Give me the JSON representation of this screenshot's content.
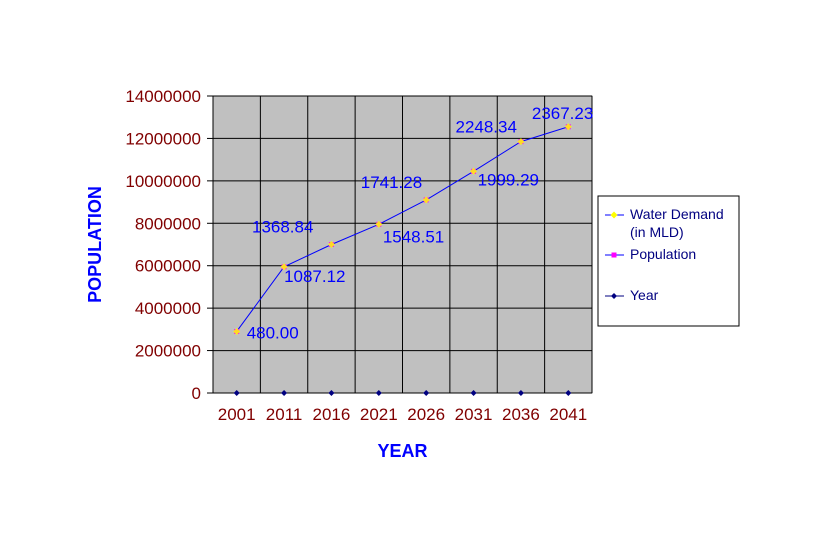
{
  "chart_data": {
    "type": "line",
    "title": "",
    "xlabel": "YEAR",
    "ylabel": "POPULATION",
    "categories": [
      "2001",
      "2011",
      "2016",
      "2021",
      "2026",
      "2031",
      "2036",
      "2041"
    ],
    "ylim": [
      0,
      14000000
    ],
    "yticks": [
      {
        "value": 0,
        "label": "0"
      },
      {
        "value": 2000000,
        "label": "2000000"
      },
      {
        "value": 4000000,
        "label": "4000000"
      },
      {
        "value": 6000000,
        "label": "6000000"
      },
      {
        "value": 8000000,
        "label": "8000000"
      },
      {
        "value": 10000000,
        "label": "10000000"
      },
      {
        "value": 12000000,
        "label": "12000000"
      },
      {
        "value": 14000000,
        "label": "14000000"
      }
    ],
    "grid": true,
    "legend_position": "right",
    "series": [
      {
        "name": "Water Demand (in MLD)",
        "legend_lines": [
          "Water Demand",
          "(in MLD)"
        ],
        "values": [
          480.0,
          1087.12,
          1368.84,
          1548.51,
          1741.28,
          1999.29,
          2248.34,
          2367.23
        ],
        "color": "#FFFF00"
      },
      {
        "name": "Population",
        "legend_lines": [
          "Population"
        ],
        "values": [
          2900000,
          5950000,
          7000000,
          7950000,
          9100000,
          10450000,
          11850000,
          12550000
        ],
        "color": "#FF00FF"
      },
      {
        "name": "Year",
        "legend_lines": [
          "Year"
        ],
        "values": [
          2001,
          2011,
          2016,
          2021,
          2026,
          2031,
          2036,
          2041
        ],
        "color": "#000080"
      }
    ],
    "data_labels": [
      "480.00",
      "1087.12",
      "1368.84",
      "1548.51",
      "1741.28",
      "1999.29",
      "2248.34",
      "2367.23"
    ],
    "colors": {
      "plot_background": "#C0C0C0",
      "connecting_line": "#0000FF",
      "data_label": "#0000FF",
      "tick_label": "#800000",
      "axis_title": "#0000FF"
    }
  }
}
